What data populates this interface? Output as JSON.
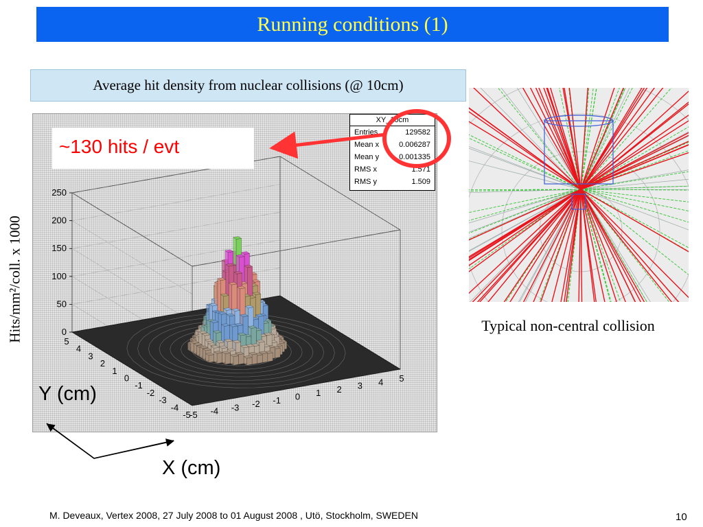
{
  "slide": {
    "title": "Running conditions (1)",
    "subtitle": "Average hit density from nuclear collisions (@ 10cm)",
    "callout": "~130 hits / evt",
    "event_caption": "Typical non-central collision",
    "footer": "M. Deveaux, Vertex 2008, 27 July 2008 to 01 August 2008 , Utö, Stockholm, SWEDEN",
    "page_number": "10"
  },
  "colors": {
    "title_bar": "#0a64f0",
    "title_text": "#ffff4d",
    "subtitle_box": "#cfe6f5",
    "callout_text": "#ff0000",
    "annotation": "#ff3333",
    "tracks_primary": "#e8141c",
    "tracks_secondary": "#2fc42f",
    "detector_outline": "#3a5bd8"
  },
  "stats": {
    "title": "XY_10cm",
    "rows": [
      {
        "label": "Entries",
        "value": "129582"
      },
      {
        "label": "Mean x",
        "value": "0.006287"
      },
      {
        "label": "Mean y",
        "value": "0.001335"
      },
      {
        "label": "RMS x",
        "value": "1.571"
      },
      {
        "label": "RMS y",
        "value": "1.509"
      }
    ]
  },
  "chart_data": {
    "type": "lego3d",
    "title": "XY_10cm",
    "xlabel": "X (cm)",
    "ylabel": "Y (cm)",
    "zlabel": "Hits/mm²/coll. x 1000",
    "x_ticks": [
      "-5",
      "-4",
      "-3",
      "-2",
      "-1",
      "0",
      "1",
      "2",
      "3",
      "4",
      "5"
    ],
    "y_ticks": [
      "5",
      "4",
      "3",
      "2",
      "1",
      "0",
      "-1",
      "-2",
      "-3",
      "-4",
      "-5"
    ],
    "z_ticks": [
      "0",
      "50",
      "100",
      "150",
      "200",
      "250"
    ],
    "xlim": [
      -5,
      5
    ],
    "ylim": [
      -5,
      5
    ],
    "zlim": [
      0,
      250
    ],
    "peak": {
      "x": 0,
      "y": 0,
      "z": 200
    },
    "rms": {
      "x": 1.571,
      "y": 1.509
    }
  }
}
